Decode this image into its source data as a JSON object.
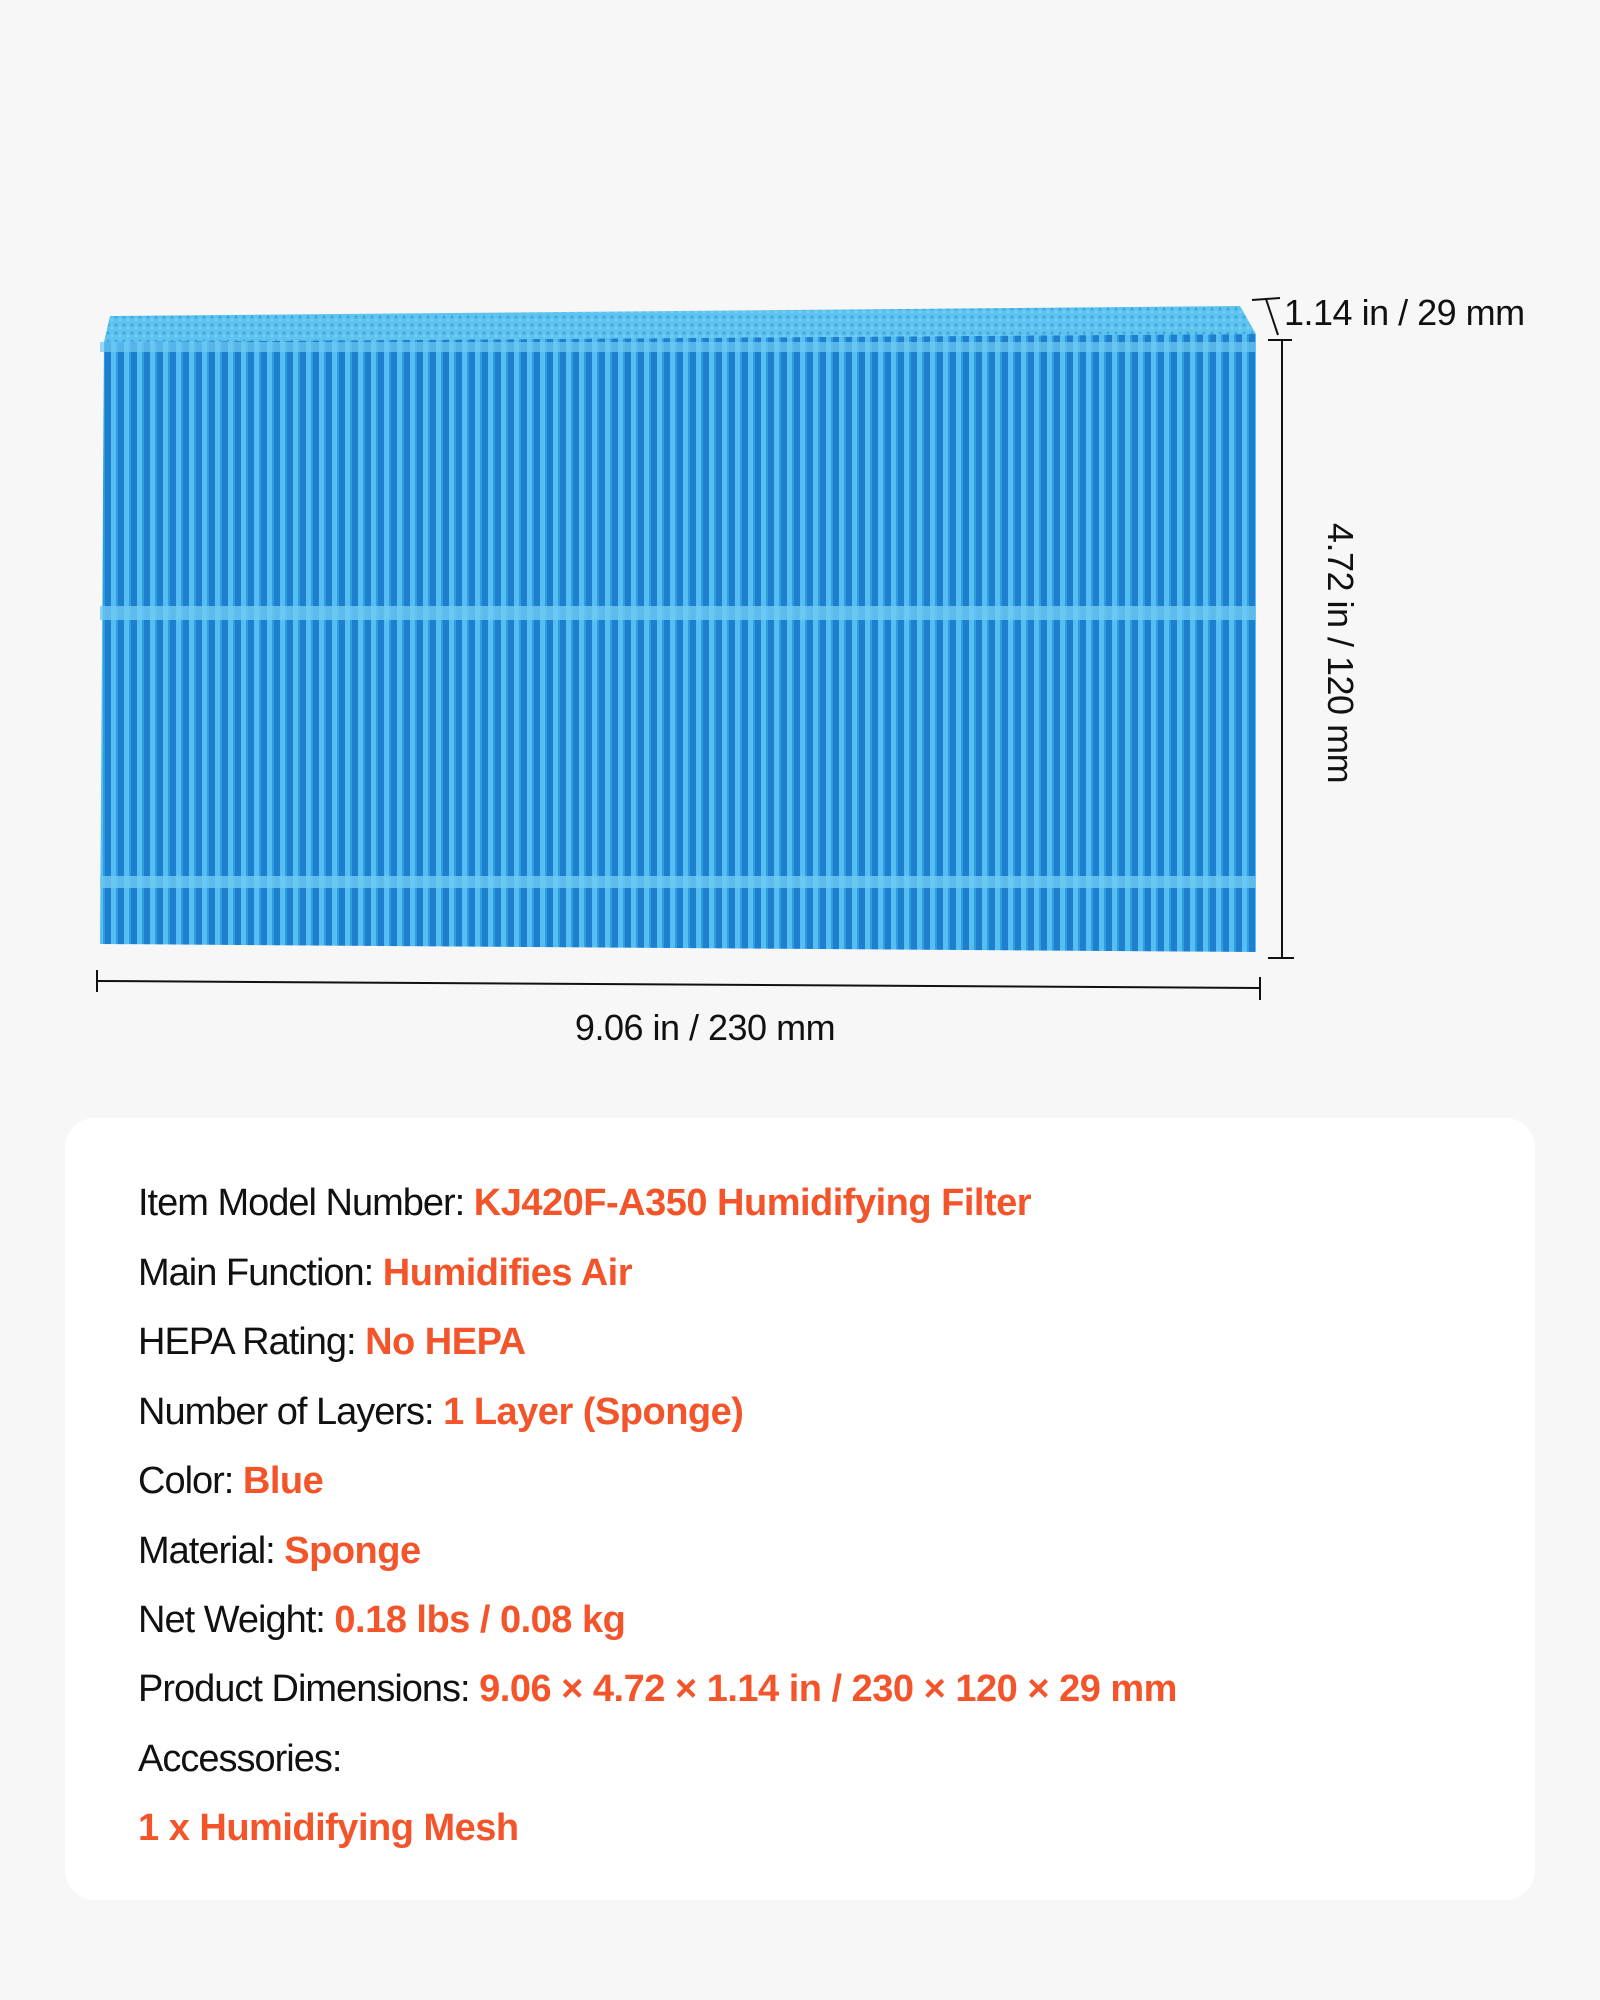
{
  "product_image": {
    "color": "#3aa6e0",
    "description_icon": "humidifier-filter-image"
  },
  "dimensions": {
    "depth": "1.14 in / 29 mm",
    "height": "4.72 in / 120 mm",
    "width": "9.06 in / 230 mm"
  },
  "specs": [
    {
      "label": "Item Model Number: ",
      "value": "KJ420F-A350 Humidifying Filter"
    },
    {
      "label": "Main Function: ",
      "value": "Humidifies Air"
    },
    {
      "label": "HEPA Rating: ",
      "value": "No HEPA"
    },
    {
      "label": "Number of Layers: ",
      "value": "1 Layer (Sponge)"
    },
    {
      "label": "Color: ",
      "value": "Blue"
    },
    {
      "label": "Material: ",
      "value": "Sponge"
    },
    {
      "label": "Net Weight: ",
      "value": "0.18 lbs / 0.08 kg"
    },
    {
      "label": "Product Dimensions: ",
      "value": "9.06 × 4.72 × 1.14 in / 230 × 120 × 29 mm"
    },
    {
      "label": "Accessories:",
      "value": ""
    },
    {
      "label": "",
      "value": "1 x Humidifying Mesh"
    }
  ],
  "accent_color": "#f3542a"
}
